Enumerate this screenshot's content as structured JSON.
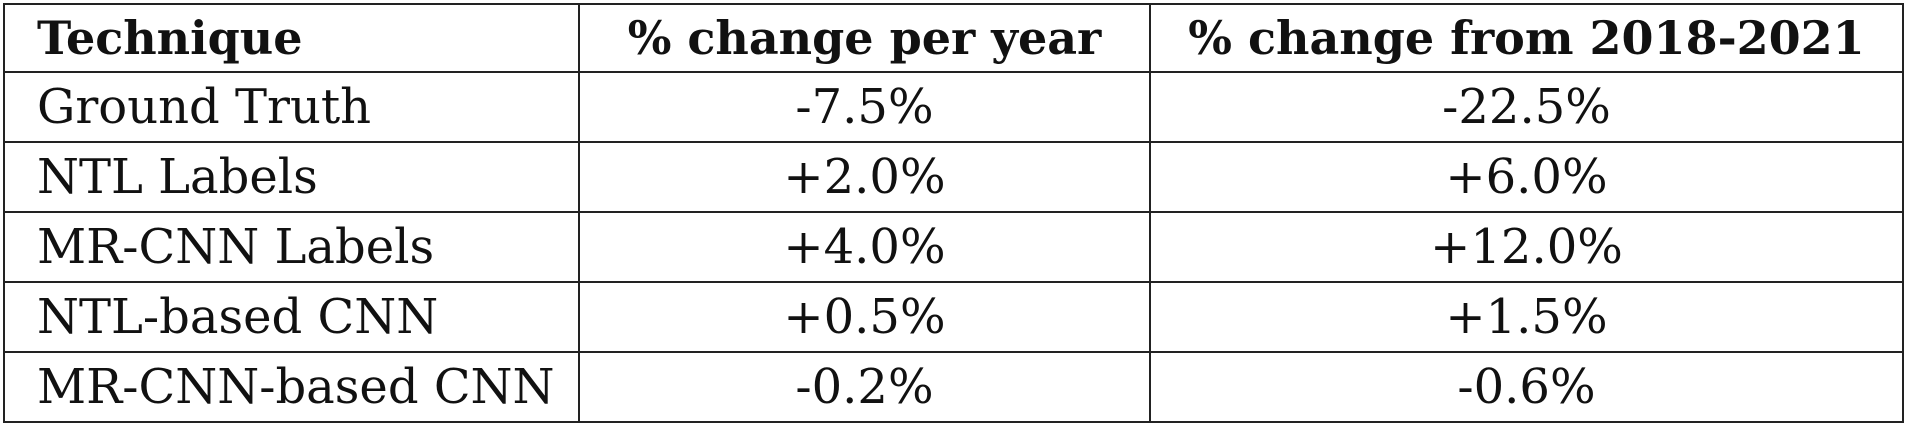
{
  "table": {
    "headers": [
      "Technique",
      "% change per year",
      "% change from 2018-2021"
    ],
    "rows": [
      {
        "technique": "Ground Truth",
        "per_year": "-7.5%",
        "total": "-22.5%"
      },
      {
        "technique": "NTL Labels",
        "per_year": "+2.0%",
        "total": "+6.0%"
      },
      {
        "technique": "MR-CNN Labels",
        "per_year": "+4.0%",
        "total": "+12.0%"
      },
      {
        "technique": "NTL-based CNN",
        "per_year": "+0.5%",
        "total": "+1.5%"
      },
      {
        "technique": "MR-CNN-based CNN",
        "per_year": "-0.2%",
        "total": "-0.6%"
      }
    ]
  }
}
